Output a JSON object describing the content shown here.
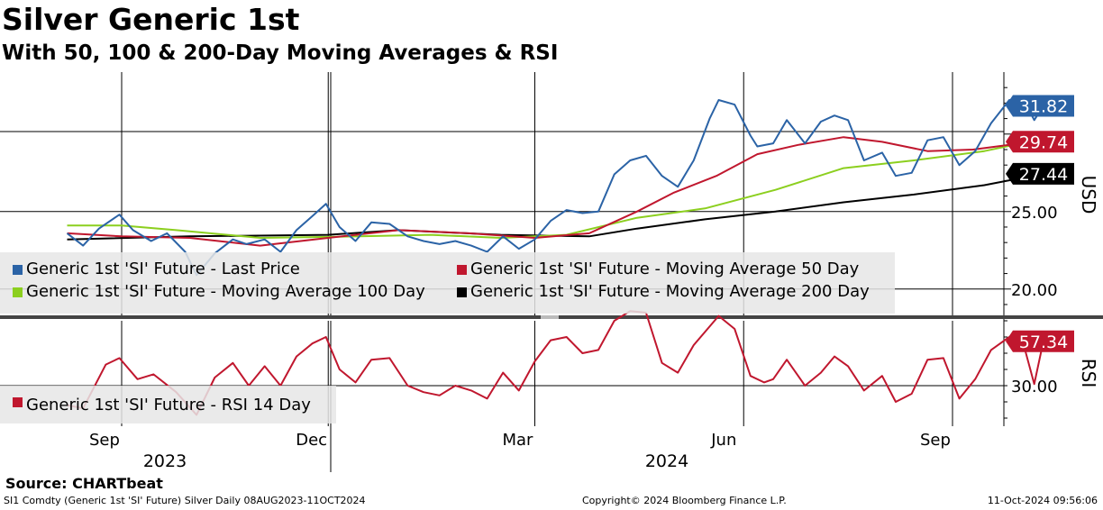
{
  "title": "Silver Generic 1st",
  "subtitle": "With 50, 100 & 200-Day Moving Averages & RSI",
  "source": "Source: CHARTbeat",
  "footer": {
    "left": "SI1 Comdty (Generic 1st 'SI' Future) Silver  Daily 08AUG2023-11OCT2024",
    "center": "Copyright© 2024 Bloomberg Finance L.P.",
    "right": "11-Oct-2024 09:56:06"
  },
  "chart_data": [
    {
      "type": "line",
      "title": "Silver Generic 1st",
      "ylabel": "USD",
      "ylim": [
        18.3,
        34.0
      ],
      "yticks": [
        20.0,
        25.0
      ],
      "ytick_labels": [
        "20.00",
        "25.00"
      ],
      "x_range": [
        "2023-08-08",
        "2024-10-11"
      ],
      "month_ticks": [
        "Sep",
        "Dec",
        "Mar",
        "Jun",
        "Sep"
      ],
      "year_labels": [
        "2023",
        "2024"
      ],
      "grid": true,
      "legend_position": "bottom-left",
      "series": [
        {
          "name": "Generic 1st 'SI' Future - Last Price",
          "color": "#2b63a6",
          "last_value": "31.82",
          "points": [
            [
              "2023-08-08",
              23.6
            ],
            [
              "2023-08-15",
              22.8
            ],
            [
              "2023-08-22",
              23.9
            ],
            [
              "2023-08-31",
              24.8
            ],
            [
              "2023-09-06",
              23.8
            ],
            [
              "2023-09-14",
              23.1
            ],
            [
              "2023-09-21",
              23.6
            ],
            [
              "2023-09-29",
              22.4
            ],
            [
              "2023-10-04",
              20.9
            ],
            [
              "2023-10-12",
              22.3
            ],
            [
              "2023-10-20",
              23.2
            ],
            [
              "2023-10-26",
              22.9
            ],
            [
              "2023-11-03",
              23.2
            ],
            [
              "2023-11-10",
              22.4
            ],
            [
              "2023-11-17",
              23.8
            ],
            [
              "2023-11-24",
              24.7
            ],
            [
              "2023-11-30",
              25.5
            ],
            [
              "2023-12-06",
              24.0
            ],
            [
              "2023-12-13",
              23.1
            ],
            [
              "2023-12-20",
              24.3
            ],
            [
              "2023-12-28",
              24.2
            ],
            [
              "2024-01-05",
              23.4
            ],
            [
              "2024-01-12",
              23.1
            ],
            [
              "2024-01-19",
              22.9
            ],
            [
              "2024-01-26",
              23.1
            ],
            [
              "2024-02-02",
              22.8
            ],
            [
              "2024-02-09",
              22.4
            ],
            [
              "2024-02-16",
              23.4
            ],
            [
              "2024-02-23",
              22.6
            ],
            [
              "2024-03-01",
              23.2
            ],
            [
              "2024-03-08",
              24.4
            ],
            [
              "2024-03-15",
              25.1
            ],
            [
              "2024-03-22",
              24.9
            ],
            [
              "2024-03-29",
              25.0
            ],
            [
              "2024-04-05",
              27.4
            ],
            [
              "2024-04-12",
              28.3
            ],
            [
              "2024-04-19",
              28.6
            ],
            [
              "2024-04-26",
              27.3
            ],
            [
              "2024-05-03",
              26.6
            ],
            [
              "2024-05-10",
              28.3
            ],
            [
              "2024-05-17",
              31.0
            ],
            [
              "2024-05-21",
              32.2
            ],
            [
              "2024-05-28",
              31.9
            ],
            [
              "2024-06-04",
              29.9
            ],
            [
              "2024-06-07",
              29.2
            ],
            [
              "2024-06-14",
              29.4
            ],
            [
              "2024-06-20",
              30.9
            ],
            [
              "2024-06-28",
              29.4
            ],
            [
              "2024-07-05",
              30.8
            ],
            [
              "2024-07-11",
              31.2
            ],
            [
              "2024-07-17",
              30.9
            ],
            [
              "2024-07-24",
              28.3
            ],
            [
              "2024-08-01",
              28.8
            ],
            [
              "2024-08-07",
              27.3
            ],
            [
              "2024-08-14",
              27.5
            ],
            [
              "2024-08-21",
              29.6
            ],
            [
              "2024-08-28",
              29.8
            ],
            [
              "2024-09-04",
              28.0
            ],
            [
              "2024-09-11",
              28.9
            ],
            [
              "2024-09-18",
              30.7
            ],
            [
              "2024-09-26",
              32.2
            ],
            [
              "2024-10-02",
              32.3
            ],
            [
              "2024-10-07",
              30.9
            ],
            [
              "2024-10-11",
              31.82
            ]
          ]
        },
        {
          "name": "Generic 1st 'SI' Future - Moving Average 50 Day",
          "color": "#c0172e",
          "last_value": "29.74",
          "points": [
            [
              "2023-08-08",
              23.6
            ],
            [
              "2023-09-01",
              23.4
            ],
            [
              "2023-10-01",
              23.3
            ],
            [
              "2023-11-01",
              22.8
            ],
            [
              "2023-12-01",
              23.3
            ],
            [
              "2024-01-01",
              23.8
            ],
            [
              "2024-02-01",
              23.6
            ],
            [
              "2024-03-01",
              23.3
            ],
            [
              "2024-03-25",
              23.6
            ],
            [
              "2024-04-15",
              25.0
            ],
            [
              "2024-05-01",
              26.2
            ],
            [
              "2024-05-20",
              27.3
            ],
            [
              "2024-06-07",
              28.7
            ],
            [
              "2024-06-25",
              29.3
            ],
            [
              "2024-07-15",
              29.8
            ],
            [
              "2024-08-01",
              29.5
            ],
            [
              "2024-08-21",
              28.9
            ],
            [
              "2024-09-10",
              29.0
            ],
            [
              "2024-09-26",
              29.3
            ],
            [
              "2024-10-11",
              29.74
            ]
          ]
        },
        {
          "name": "Generic 1st 'SI' Future - Moving Average 100 Day",
          "color": "#8ccf1f",
          "last_value": "",
          "points": [
            [
              "2023-08-08",
              24.1
            ],
            [
              "2023-09-01",
              24.1
            ],
            [
              "2023-09-25",
              23.8
            ],
            [
              "2023-11-01",
              23.3
            ],
            [
              "2023-12-15",
              23.4
            ],
            [
              "2024-01-15",
              23.5
            ],
            [
              "2024-02-15",
              23.3
            ],
            [
              "2024-03-15",
              23.5
            ],
            [
              "2024-04-15",
              24.6
            ],
            [
              "2024-05-15",
              25.2
            ],
            [
              "2024-06-15",
              26.4
            ],
            [
              "2024-07-15",
              27.8
            ],
            [
              "2024-08-15",
              28.3
            ],
            [
              "2024-09-15",
              28.9
            ],
            [
              "2024-10-11",
              29.7
            ]
          ]
        },
        {
          "name": "Generic 1st 'SI' Future - Moving Average 200 Day",
          "color": "#000000",
          "last_value": "27.44",
          "points": [
            [
              "2023-08-08",
              23.2
            ],
            [
              "2023-10-01",
              23.4
            ],
            [
              "2023-12-01",
              23.5
            ],
            [
              "2024-01-01",
              23.8
            ],
            [
              "2024-02-15",
              23.5
            ],
            [
              "2024-03-25",
              23.4
            ],
            [
              "2024-04-15",
              23.9
            ],
            [
              "2024-05-15",
              24.5
            ],
            [
              "2024-06-15",
              25.0
            ],
            [
              "2024-07-15",
              25.6
            ],
            [
              "2024-08-15",
              26.1
            ],
            [
              "2024-09-15",
              26.7
            ],
            [
              "2024-10-11",
              27.44
            ]
          ]
        }
      ]
    },
    {
      "type": "line",
      "title": "RSI",
      "ylabel": "RSI",
      "ylim": [
        5,
        70
      ],
      "yticks": [
        30
      ],
      "ytick_labels": [
        "30.00"
      ],
      "legend_position": "bottom-left",
      "series": [
        {
          "name": "Generic 1st 'SI' Future - RSI 14 Day",
          "color": "#c0172e",
          "last_value": "57.34",
          "points": [
            [
              "2023-08-08",
              18
            ],
            [
              "2023-08-15",
              16
            ],
            [
              "2023-08-25",
              43
            ],
            [
              "2023-08-31",
              47
            ],
            [
              "2023-09-08",
              34
            ],
            [
              "2023-09-15",
              37
            ],
            [
              "2023-09-25",
              26
            ],
            [
              "2023-10-04",
              12
            ],
            [
              "2023-10-12",
              35
            ],
            [
              "2023-10-20",
              44
            ],
            [
              "2023-10-27",
              30
            ],
            [
              "2023-11-03",
              42
            ],
            [
              "2023-11-10",
              30
            ],
            [
              "2023-11-17",
              48
            ],
            [
              "2023-11-24",
              56
            ],
            [
              "2023-11-30",
              60
            ],
            [
              "2023-12-06",
              40
            ],
            [
              "2023-12-13",
              32
            ],
            [
              "2023-12-20",
              46
            ],
            [
              "2023-12-28",
              47
            ],
            [
              "2024-01-05",
              30
            ],
            [
              "2024-01-12",
              26
            ],
            [
              "2024-01-19",
              24
            ],
            [
              "2024-01-26",
              30
            ],
            [
              "2024-02-02",
              27
            ],
            [
              "2024-02-09",
              22
            ],
            [
              "2024-02-16",
              38
            ],
            [
              "2024-02-23",
              27
            ],
            [
              "2024-03-01",
              45
            ],
            [
              "2024-03-08",
              58
            ],
            [
              "2024-03-15",
              60
            ],
            [
              "2024-03-22",
              50
            ],
            [
              "2024-03-29",
              52
            ],
            [
              "2024-04-05",
              70
            ],
            [
              "2024-04-12",
              76
            ],
            [
              "2024-04-19",
              75
            ],
            [
              "2024-04-26",
              44
            ],
            [
              "2024-05-03",
              38
            ],
            [
              "2024-05-10",
              55
            ],
            [
              "2024-05-21",
              73
            ],
            [
              "2024-05-28",
              65
            ],
            [
              "2024-06-04",
              36
            ],
            [
              "2024-06-10",
              32
            ],
            [
              "2024-06-14",
              34
            ],
            [
              "2024-06-20",
              46
            ],
            [
              "2024-06-28",
              30
            ],
            [
              "2024-07-05",
              38
            ],
            [
              "2024-07-11",
              48
            ],
            [
              "2024-07-17",
              42
            ],
            [
              "2024-07-24",
              27
            ],
            [
              "2024-08-01",
              36
            ],
            [
              "2024-08-07",
              20
            ],
            [
              "2024-08-14",
              25
            ],
            [
              "2024-08-21",
              46
            ],
            [
              "2024-08-28",
              47
            ],
            [
              "2024-09-04",
              22
            ],
            [
              "2024-09-11",
              34
            ],
            [
              "2024-09-18",
              52
            ],
            [
              "2024-09-26",
              60
            ],
            [
              "2024-10-02",
              57
            ],
            [
              "2024-10-07",
              31
            ],
            [
              "2024-10-11",
              57.34
            ]
          ]
        }
      ]
    }
  ],
  "label_tags": {
    "price_last": {
      "value": "31.82",
      "bg": "#2b63a6",
      "fg": "#ffffff"
    },
    "ma50_last": {
      "value": "29.74",
      "bg": "#c0172e",
      "fg": "#ffffff"
    },
    "ma200_last": {
      "value": "27.44",
      "bg": "#000000",
      "fg": "#ffffff"
    },
    "rsi_last": {
      "value": "57.34",
      "bg": "#c0172e",
      "fg": "#ffffff"
    }
  }
}
